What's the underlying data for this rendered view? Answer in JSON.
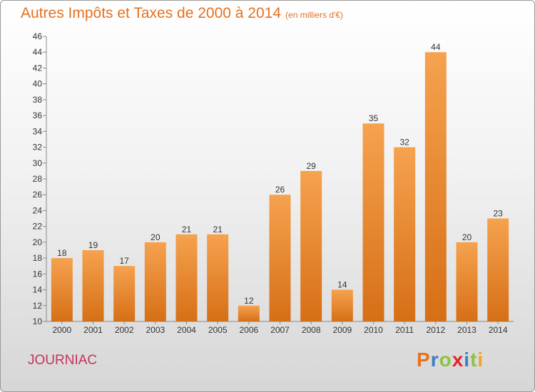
{
  "header": {
    "title": "Autres Impôts et Taxes de 2000 à 2014",
    "unit": "(en milliers d'€)"
  },
  "footer": {
    "town": "JOURNIAC",
    "brand": "Proxiti",
    "brand_colors": [
      "#e9711f",
      "#3b7fc9",
      "#8cc43f",
      "#e5232f",
      "#3b7fc9",
      "#8cc43f",
      "#f0a422"
    ]
  },
  "colors": {
    "bar_top": "#f6a24f",
    "bar_bottom": "#d66f16",
    "title": "#e5711f",
    "town": "#c8335c"
  },
  "chart_data": {
    "type": "bar",
    "title": "Autres Impôts et Taxes de 2000 à 2014",
    "xlabel": "",
    "ylabel": "",
    "ylim": [
      10,
      46
    ],
    "yticks": [
      10,
      12,
      14,
      16,
      18,
      20,
      22,
      24,
      26,
      28,
      30,
      32,
      34,
      36,
      38,
      40,
      42,
      44,
      46
    ],
    "grid": false,
    "categories": [
      "2000",
      "2001",
      "2002",
      "2003",
      "2004",
      "2005",
      "2006",
      "2007",
      "2008",
      "2009",
      "2010",
      "2011",
      "2012",
      "2013",
      "2014"
    ],
    "values": [
      18,
      19,
      17,
      20,
      21,
      21,
      12,
      26,
      29,
      14,
      35,
      32,
      44,
      20,
      23
    ]
  }
}
